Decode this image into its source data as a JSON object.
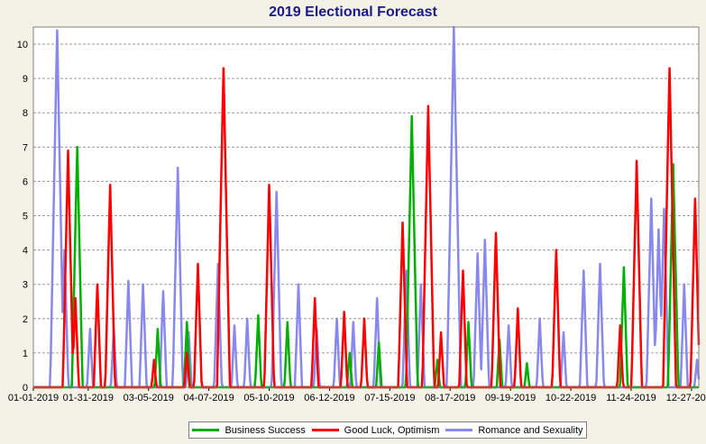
{
  "chart_data": {
    "type": "line",
    "title": "2019 Electional Forecast",
    "xlabel": "",
    "ylabel": "",
    "x_range": [
      "2019-01-01",
      "2019-12-31"
    ],
    "ylim": [
      0,
      10.5
    ],
    "y_ticks": [
      0,
      1,
      2,
      3,
      4,
      5,
      6,
      7,
      8,
      9,
      10
    ],
    "x_tick_labels": [
      "01-01-2019",
      "01-31-2019",
      "03-05-2019",
      "04-07-2019",
      "05-10-2019",
      "06-12-2019",
      "07-15-2019",
      "08-17-2019",
      "09-19-2019",
      "10-22-2019",
      "11-24-2019",
      "12-27-2019"
    ],
    "grid": "horizontal dashed",
    "legend_position": "bottom",
    "series": [
      {
        "name": "Business Success",
        "color": "#00b000",
        "peaks": [
          {
            "date": "2019-01-25",
            "value": 7.0
          },
          {
            "date": "2019-03-10",
            "value": 1.7
          },
          {
            "date": "2019-03-26",
            "value": 1.9
          },
          {
            "date": "2019-05-04",
            "value": 2.1
          },
          {
            "date": "2019-05-20",
            "value": 1.9
          },
          {
            "date": "2019-06-23",
            "value": 1.0
          },
          {
            "date": "2019-07-09",
            "value": 1.3
          },
          {
            "date": "2019-07-27",
            "value": 7.9
          },
          {
            "date": "2019-08-10",
            "value": 0.8
          },
          {
            "date": "2019-08-27",
            "value": 1.9
          },
          {
            "date": "2019-09-13",
            "value": 1.4
          },
          {
            "date": "2019-09-28",
            "value": 0.7
          },
          {
            "date": "2019-11-20",
            "value": 3.5
          },
          {
            "date": "2019-12-17",
            "value": 6.5
          }
        ]
      },
      {
        "name": "Good Luck, Optimism",
        "color": "#ff0000",
        "peaks": [
          {
            "date": "2019-01-20",
            "value": 6.9
          },
          {
            "date": "2019-01-24",
            "value": 2.6
          },
          {
            "date": "2019-02-05",
            "value": 3.0
          },
          {
            "date": "2019-02-12",
            "value": 5.9
          },
          {
            "date": "2019-03-08",
            "value": 0.8
          },
          {
            "date": "2019-03-26",
            "value": 1.0
          },
          {
            "date": "2019-04-01",
            "value": 3.6
          },
          {
            "date": "2019-04-15",
            "value": 9.3
          },
          {
            "date": "2019-05-10",
            "value": 5.9
          },
          {
            "date": "2019-06-04",
            "value": 2.6
          },
          {
            "date": "2019-06-20",
            "value": 2.2
          },
          {
            "date": "2019-07-01",
            "value": 2.0
          },
          {
            "date": "2019-07-22",
            "value": 4.8
          },
          {
            "date": "2019-08-05",
            "value": 8.2
          },
          {
            "date": "2019-08-12",
            "value": 1.6
          },
          {
            "date": "2019-08-24",
            "value": 3.4
          },
          {
            "date": "2019-09-11",
            "value": 4.5
          },
          {
            "date": "2019-09-23",
            "value": 2.3
          },
          {
            "date": "2019-10-14",
            "value": 4.0
          },
          {
            "date": "2019-11-18",
            "value": 1.8
          },
          {
            "date": "2019-11-27",
            "value": 6.6
          },
          {
            "date": "2019-12-15",
            "value": 9.3
          },
          {
            "date": "2019-12-29",
            "value": 5.5
          }
        ]
      },
      {
        "name": "Romance and Sexuality",
        "color": "#8888ee",
        "peaks": [
          {
            "date": "2019-01-14",
            "value": 10.4
          },
          {
            "date": "2019-01-18",
            "value": 4.0
          },
          {
            "date": "2019-02-01",
            "value": 1.7
          },
          {
            "date": "2019-02-14",
            "value": 1.7
          },
          {
            "date": "2019-02-22",
            "value": 3.1
          },
          {
            "date": "2019-03-02",
            "value": 3.0
          },
          {
            "date": "2019-03-13",
            "value": 2.8
          },
          {
            "date": "2019-03-21",
            "value": 6.4
          },
          {
            "date": "2019-03-27",
            "value": 1.6
          },
          {
            "date": "2019-04-12",
            "value": 3.6
          },
          {
            "date": "2019-04-21",
            "value": 1.8
          },
          {
            "date": "2019-04-28",
            "value": 2.0
          },
          {
            "date": "2019-05-14",
            "value": 5.7
          },
          {
            "date": "2019-05-26",
            "value": 3.0
          },
          {
            "date": "2019-06-05",
            "value": 1.7
          },
          {
            "date": "2019-06-16",
            "value": 2.0
          },
          {
            "date": "2019-06-25",
            "value": 1.9
          },
          {
            "date": "2019-07-08",
            "value": 2.6
          },
          {
            "date": "2019-07-24",
            "value": 3.4
          },
          {
            "date": "2019-08-01",
            "value": 3.0
          },
          {
            "date": "2019-08-19",
            "value": 10.5
          },
          {
            "date": "2019-09-01",
            "value": 3.9
          },
          {
            "date": "2019-09-05",
            "value": 4.3
          },
          {
            "date": "2019-09-18",
            "value": 1.8
          },
          {
            "date": "2019-10-05",
            "value": 2.0
          },
          {
            "date": "2019-10-18",
            "value": 1.6
          },
          {
            "date": "2019-10-29",
            "value": 3.4
          },
          {
            "date": "2019-11-07",
            "value": 3.6
          },
          {
            "date": "2019-12-05",
            "value": 5.5
          },
          {
            "date": "2019-12-09",
            "value": 4.6
          },
          {
            "date": "2019-12-12",
            "value": 5.2
          },
          {
            "date": "2019-12-23",
            "value": 3.0
          },
          {
            "date": "2019-12-30",
            "value": 0.8
          }
        ]
      }
    ]
  }
}
